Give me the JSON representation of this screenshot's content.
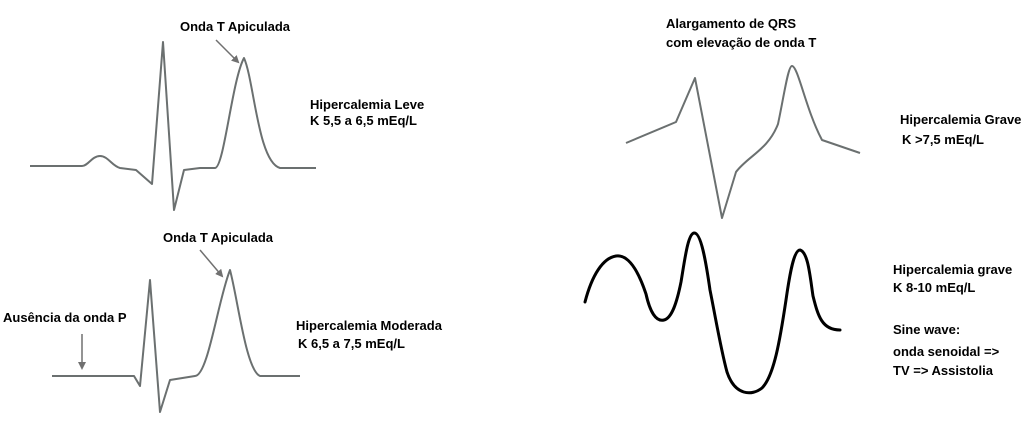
{
  "colors": {
    "ecg_trace": "#6b7070",
    "arrow": "#707070",
    "sine_trace": "#000000",
    "text": "#000000",
    "background": "#ffffff"
  },
  "panels": {
    "leve": {
      "title": "Hipercalemia Leve",
      "range": "K 5,5 a 6,5 mEq/L",
      "annotation": "Onda T Apiculada"
    },
    "moderada": {
      "title": "Hipercalemia Moderada",
      "range": "K 6,5 a 7,5 mEq/L",
      "annotation_t": "Onda T Apiculada",
      "annotation_p": "Ausência da onda P"
    },
    "grave": {
      "title": "Hipercalemia Grave",
      "range": "K >7,5 mEq/L",
      "annotation_line1": "Alargamento de QRS",
      "annotation_line2": "com elevação de onda T"
    },
    "grave_sine": {
      "title": "Hipercalemia grave",
      "range": "K 8-10 mEq/L",
      "note_line1": "Sine wave:",
      "note_line2": "onda senoidal =>",
      "note_line3": "TV => Assistolia"
    }
  }
}
